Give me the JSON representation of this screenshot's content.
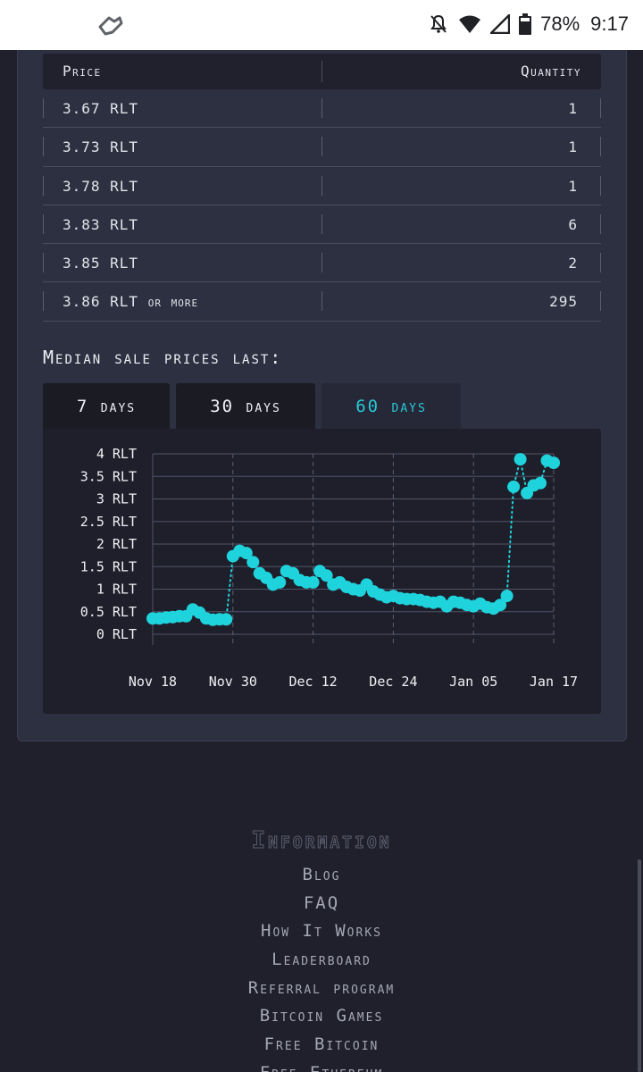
{
  "status_bar": {
    "battery": "78%",
    "time": "9:17",
    "icons": [
      "app-notification-icon",
      "mute-icon",
      "wifi-icon",
      "signal-icon",
      "battery-icon"
    ]
  },
  "orders_table": {
    "headers": {
      "price": "Price",
      "quantity": "Quantity"
    },
    "rows": [
      {
        "price": "3.67 RLT",
        "quantity": "1"
      },
      {
        "price": "3.73 RLT",
        "quantity": "1"
      },
      {
        "price": "3.78 RLT",
        "quantity": "1"
      },
      {
        "price": "3.83 RLT",
        "quantity": "6"
      },
      {
        "price": "3.85 RLT",
        "quantity": "2"
      },
      {
        "price": "3.86 RLT or more",
        "quantity": "295"
      }
    ]
  },
  "median": {
    "title": "Median sale prices last:",
    "tabs": [
      {
        "label": "7 days",
        "active": false
      },
      {
        "label": "30 days",
        "active": false
      },
      {
        "label": "60 days",
        "active": true
      }
    ]
  },
  "chart_data": {
    "type": "line",
    "title": "",
    "xlabel": "",
    "ylabel": "",
    "ylim": [
      0,
      4
    ],
    "y_ticks": [
      "0 RLT",
      "0.5 RLT",
      "1 RLT",
      "1.5 RLT",
      "2 RLT",
      "2.5 RLT",
      "3 RLT",
      "3.5 RLT",
      "4 RLT"
    ],
    "x_ticks": [
      "Nov 18",
      "Nov 30",
      "Dec 12",
      "Dec 24",
      "Jan 05",
      "Jan 17"
    ],
    "grid": true,
    "line_style": "dotted",
    "color": "#1fd3dc",
    "series": [
      {
        "points": [
          [
            "Nov 18",
            0.35
          ],
          [
            "Nov 19",
            0.35
          ],
          [
            "Nov 20",
            0.37
          ],
          [
            "Nov 21",
            0.38
          ],
          [
            "Nov 22",
            0.4
          ],
          [
            "Nov 23",
            0.4
          ],
          [
            "Nov 24",
            0.55
          ],
          [
            "Nov 25",
            0.48
          ],
          [
            "Nov 26",
            0.35
          ],
          [
            "Nov 27",
            0.32
          ],
          [
            "Nov 28",
            0.33
          ],
          [
            "Nov 29",
            0.33
          ],
          [
            "Nov 30",
            1.73
          ],
          [
            "Dec 01",
            1.85
          ],
          [
            "Dec 02",
            1.8
          ],
          [
            "Dec 03",
            1.6
          ],
          [
            "Dec 04",
            1.35
          ],
          [
            "Dec 05",
            1.25
          ],
          [
            "Dec 06",
            1.1
          ],
          [
            "Dec 07",
            1.15
          ],
          [
            "Dec 08",
            1.4
          ],
          [
            "Dec 09",
            1.35
          ],
          [
            "Dec 10",
            1.2
          ],
          [
            "Dec 11",
            1.15
          ],
          [
            "Dec 12",
            1.15
          ],
          [
            "Dec 13",
            1.4
          ],
          [
            "Dec 14",
            1.3
          ],
          [
            "Dec 15",
            1.1
          ],
          [
            "Dec 16",
            1.15
          ],
          [
            "Dec 17",
            1.05
          ],
          [
            "Dec 18",
            1.0
          ],
          [
            "Dec 19",
            0.97
          ],
          [
            "Dec 20",
            1.1
          ],
          [
            "Dec 21",
            0.95
          ],
          [
            "Dec 22",
            0.88
          ],
          [
            "Dec 23",
            0.82
          ],
          [
            "Dec 24",
            0.85
          ],
          [
            "Dec 25",
            0.8
          ],
          [
            "Dec 26",
            0.78
          ],
          [
            "Dec 27",
            0.78
          ],
          [
            "Dec 28",
            0.76
          ],
          [
            "Dec 29",
            0.72
          ],
          [
            "Dec 30",
            0.7
          ],
          [
            "Dec 31",
            0.72
          ],
          [
            "Jan 01",
            0.62
          ],
          [
            "Jan 02",
            0.72
          ],
          [
            "Jan 03",
            0.7
          ],
          [
            "Jan 04",
            0.65
          ],
          [
            "Jan 05",
            0.62
          ],
          [
            "Jan 06",
            0.68
          ],
          [
            "Jan 07",
            0.6
          ],
          [
            "Jan 08",
            0.57
          ],
          [
            "Jan 09",
            0.65
          ],
          [
            "Jan 10",
            0.85
          ],
          [
            "Jan 11",
            3.27
          ],
          [
            "Jan 12",
            3.88
          ],
          [
            "Jan 13",
            3.13
          ],
          [
            "Jan 14",
            3.3
          ],
          [
            "Jan 15",
            3.35
          ],
          [
            "Jan 16",
            3.85
          ],
          [
            "Jan 17",
            3.8
          ]
        ]
      }
    ]
  },
  "footer": {
    "heading": "Information",
    "links": [
      "Blog",
      "FAQ",
      "How It Works",
      "Leaderboard",
      "Referral program",
      "Bitcoin Games",
      "Free Bitcoin",
      "Free Ethereum"
    ]
  }
}
